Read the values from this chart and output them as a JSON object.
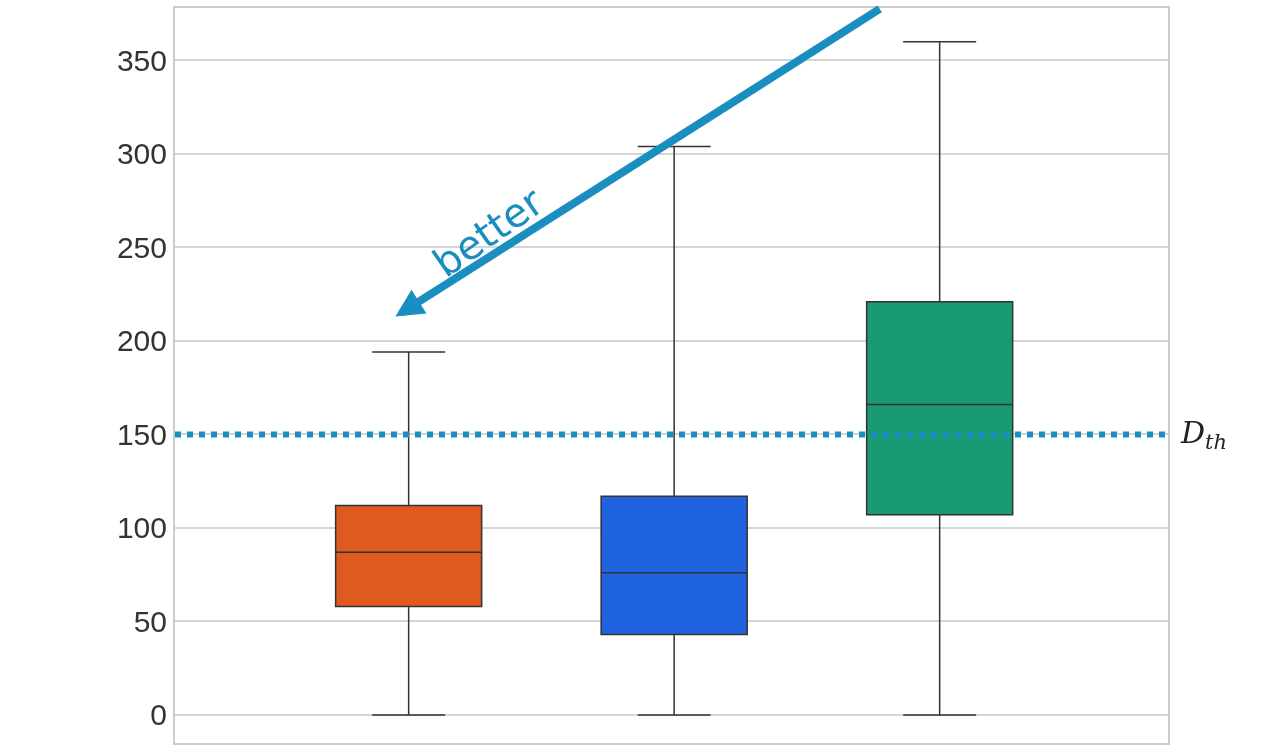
{
  "chart_data": {
    "type": "box",
    "categories": [
      null,
      null,
      null
    ],
    "colors": [
      "#de5a1e",
      "#1f63e0",
      "#1a9a72"
    ],
    "boxes": [
      {
        "low": 0,
        "q1": 58,
        "median": 87,
        "q3": 112,
        "high": 194
      },
      {
        "low": 0,
        "q1": 43,
        "median": 76,
        "q3": 117,
        "high": 304
      },
      {
        "low": 0,
        "q1": 107,
        "median": 166,
        "q3": 221,
        "high": 360
      }
    ],
    "ylim": [
      -15,
      378
    ],
    "yticks": [
      0,
      50,
      100,
      150,
      200,
      250,
      300,
      350
    ],
    "tick_labels": "y",
    "grid": "y",
    "ref_lines": [
      {
        "axis": "y",
        "value": 150,
        "label": "D$_{th}$",
        "color": "#1a8fbf",
        "line_style": "dotted"
      }
    ],
    "annotations": [
      "better"
    ]
  }
}
